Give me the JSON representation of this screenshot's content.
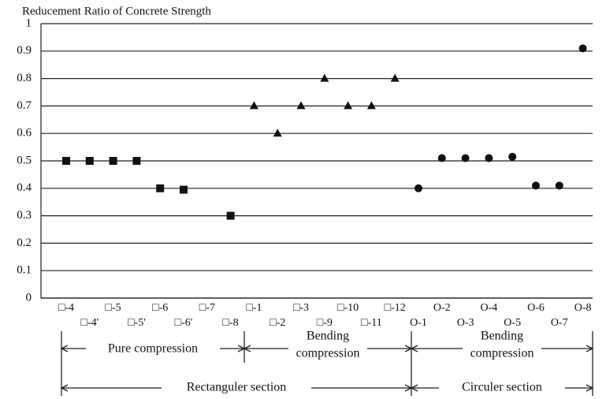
{
  "chart_data": {
    "type": "scatter",
    "title": "Reducement Ratio of Concrete Strength",
    "categories": [
      "□-4",
      "□-4'",
      "□-5",
      "□-5'",
      "□-6",
      "□-6'",
      "□-7",
      "□-8",
      "□-1",
      "□-2",
      "□-3",
      "□-9",
      "□-10",
      "□-11",
      "□-12",
      "O-1",
      "O-2",
      "O-3",
      "O-4",
      "O-5",
      "O-6",
      "O-7",
      "O-8"
    ],
    "series": [
      {
        "marker": "square",
        "color": "#111111",
        "values": [
          0.5,
          0.5,
          0.5,
          0.5,
          0.4,
          0.395,
          null,
          0.3,
          null,
          null,
          null,
          null,
          null,
          null,
          null,
          null,
          null,
          null,
          null,
          null,
          null,
          null,
          null
        ]
      },
      {
        "marker": "triangle",
        "color": "#111111",
        "values": [
          null,
          null,
          null,
          null,
          null,
          null,
          null,
          null,
          0.7,
          0.6,
          0.7,
          0.8,
          0.7,
          0.7,
          0.8,
          null,
          null,
          null,
          null,
          null,
          null,
          null,
          null
        ]
      },
      {
        "marker": "circle",
        "color": "#111111",
        "values": [
          null,
          null,
          null,
          null,
          null,
          null,
          null,
          null,
          null,
          null,
          null,
          null,
          null,
          null,
          null,
          0.4,
          0.51,
          0.51,
          0.51,
          0.515,
          0.41,
          0.41,
          0.91
        ]
      }
    ],
    "ylim": [
      0,
      1
    ],
    "yticks": [
      0,
      0.1,
      0.2,
      0.3,
      0.4,
      0.5,
      0.6,
      0.7,
      0.8,
      0.9,
      1
    ],
    "grid": true,
    "groups": [
      {
        "label": [
          "Pure compression"
        ]
      },
      {
        "label": [
          "Bending",
          "compression"
        ]
      },
      {
        "label": [
          "Bending",
          "compression"
        ]
      }
    ],
    "sections": [
      {
        "label": "Rectanguler section"
      },
      {
        "label": "Circuler section"
      }
    ]
  }
}
